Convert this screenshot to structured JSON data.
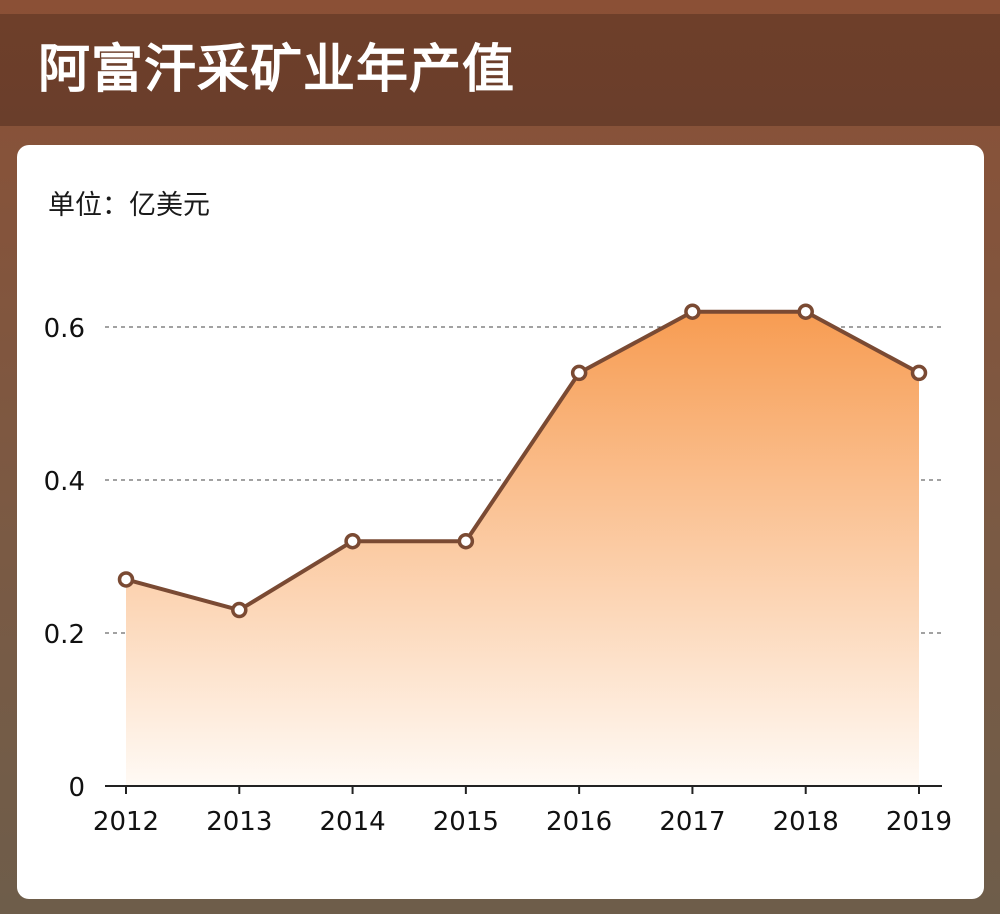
{
  "header": {
    "title": "阿富汗采矿业年产值"
  },
  "chart_data": {
    "type": "area",
    "title": "阿富汗采矿业年产值",
    "unit_label": "单位：亿美元",
    "categories": [
      "2012",
      "2013",
      "2014",
      "2015",
      "2016",
      "2017",
      "2018",
      "2019"
    ],
    "values": [
      0.27,
      0.23,
      0.32,
      0.32,
      0.54,
      0.62,
      0.62,
      0.54
    ],
    "ylim": [
      0,
      0.6
    ],
    "yticks": [
      "0",
      "0.2",
      "0.4",
      "0.6"
    ],
    "grid": true,
    "colors": {
      "line": "#7a4a33",
      "fill_top": "#f79c52",
      "fill_bottom": "#fffaf5"
    }
  }
}
